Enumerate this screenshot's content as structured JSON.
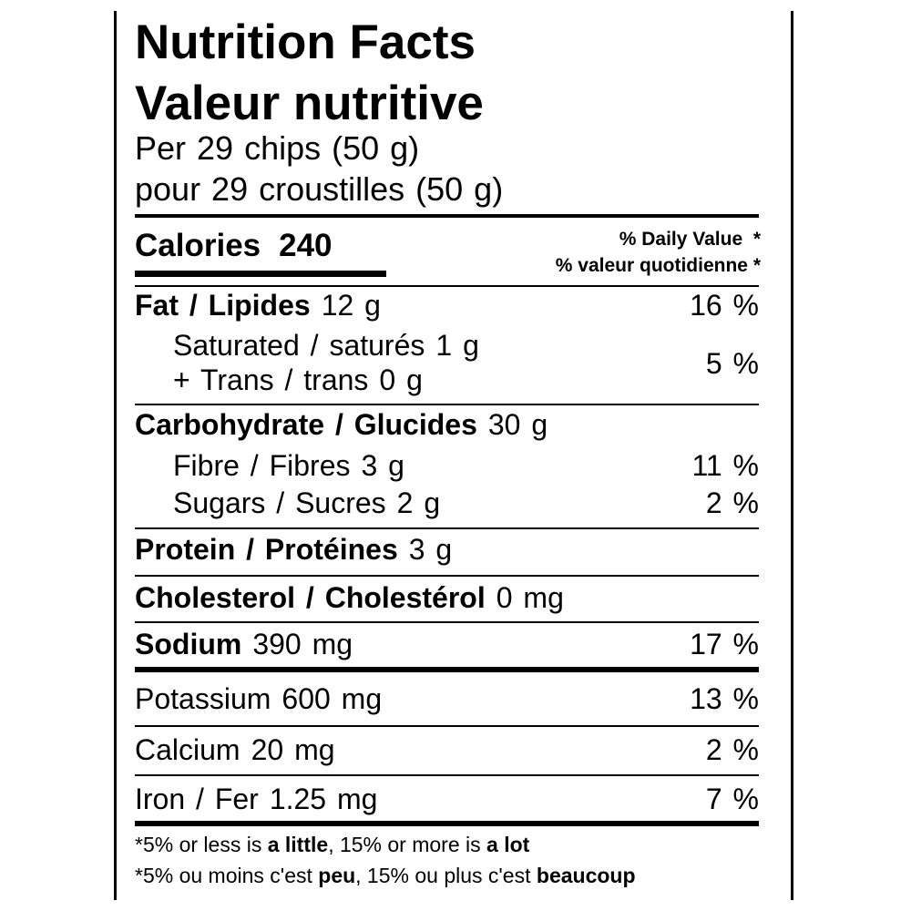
{
  "header": {
    "title_en": "Nutrition Facts",
    "title_fr": "Valeur nutritive",
    "serving_en": "Per 29 chips (50 g)",
    "serving_fr": "pour 29 croustilles (50 g)"
  },
  "calories": {
    "label": "Calories",
    "value": 240
  },
  "daily_value": {
    "en": "% Daily Value  *",
    "fr": "% valeur quotidienne *"
  },
  "nutrients": {
    "fat": {
      "name": "Fat / Lipides",
      "amount": "12 g",
      "dv": "16 %"
    },
    "saturated_trans": {
      "saturated": {
        "name": "Saturated / saturés",
        "amount": "1 g"
      },
      "trans": {
        "name": "+ Trans / trans",
        "amount": "0 g"
      },
      "dv": "5 %"
    },
    "carbohydrate": {
      "name": "Carbohydrate / Glucides",
      "amount": "30 g"
    },
    "fibre": {
      "name": "Fibre / Fibres",
      "amount": "3 g",
      "dv": "11 %"
    },
    "sugars": {
      "name": "Sugars / Sucres",
      "amount": "2 g",
      "dv": "2 %"
    },
    "protein": {
      "name": "Protein / Protéines",
      "amount": "3 g"
    },
    "cholesterol": {
      "name": "Cholesterol / Cholestérol",
      "amount": "0 mg"
    },
    "sodium": {
      "name": "Sodium",
      "amount": "390 mg",
      "dv": "17 %"
    },
    "potassium": {
      "name": "Potassium",
      "amount": "600 mg",
      "dv": "13 %"
    },
    "calcium": {
      "name": "Calcium",
      "amount": "20 mg",
      "dv": "2 %"
    },
    "iron": {
      "name": "Iron / Fer",
      "amount": "1.25 mg",
      "dv": "7 %"
    }
  },
  "footnotes": [
    [
      {
        "text": "*5% or less is ",
        "bold": false
      },
      {
        "text": "a little",
        "bold": true
      },
      {
        "text": ", 15% or more is ",
        "bold": false
      },
      {
        "text": "a lot",
        "bold": true
      }
    ],
    [
      {
        "text": "*5% ou moins c'est ",
        "bold": false
      },
      {
        "text": "peu",
        "bold": true
      },
      {
        "text": ", 15% ou plus c'est ",
        "bold": false
      },
      {
        "text": "beaucoup",
        "bold": true
      }
    ]
  ]
}
